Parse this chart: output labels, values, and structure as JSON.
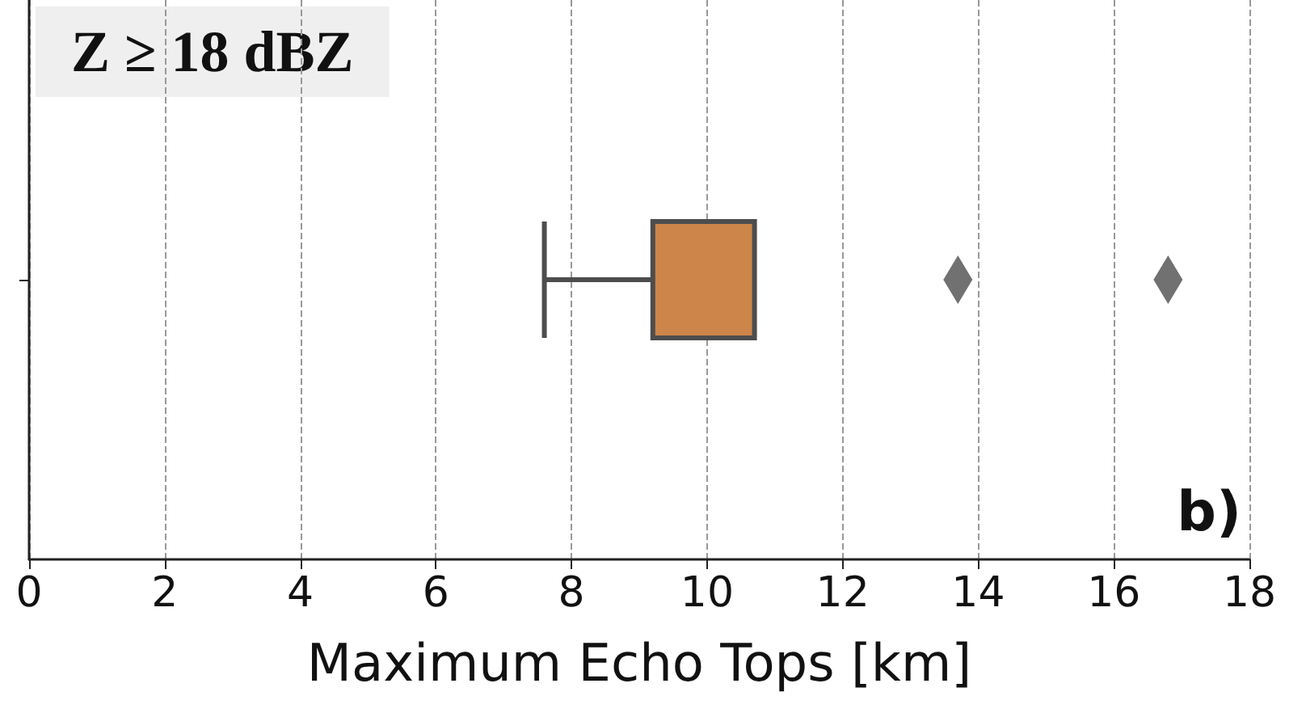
{
  "chart_data": {
    "type": "box",
    "orientation": "horizontal",
    "categories": [
      null
    ],
    "series": [
      {
        "color": "#cd8549",
        "boxes": [
          {
            "low": 7.6,
            "q1": 9.2,
            "median": 10.7,
            "q3": 10.7,
            "high": 10.7,
            "outliers": [
              13.7,
              16.8
            ]
          }
        ]
      }
    ],
    "xlabel": "Maximum Echo Tops [km]",
    "xlim": [
      0,
      18
    ],
    "xticks": [
      0,
      2,
      4,
      6,
      8,
      10,
      12,
      14,
      16,
      18
    ],
    "grid": "x",
    "marker": "diamond",
    "tick_labels": "x",
    "annotations": [
      "Z ≥ 18 dBZ",
      "b)"
    ]
  }
}
